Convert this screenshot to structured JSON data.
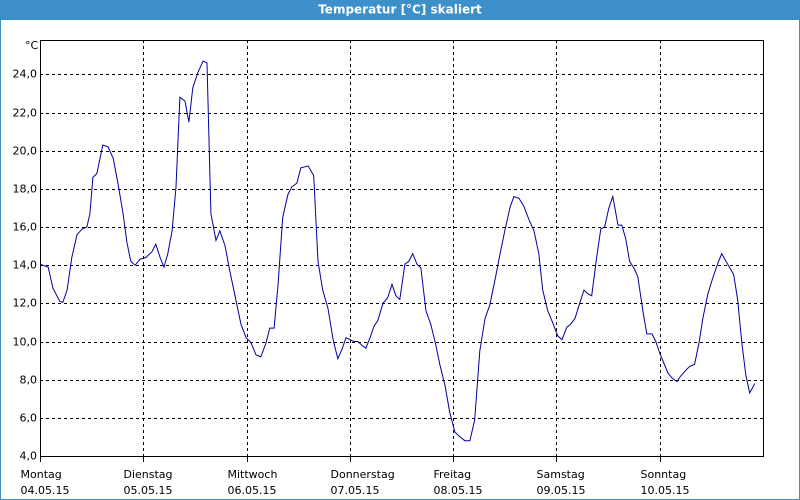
{
  "chart_data": {
    "type": "line",
    "title": "Temperatur [°C] skaliert",
    "y_unit": "°C",
    "x": [
      0,
      1.9,
      3.0,
      4.6,
      5.3,
      6.3,
      7.4,
      8.6,
      9.8,
      10.9,
      11.6,
      12.3,
      13.2,
      14.6,
      15.8,
      17.0,
      18.1,
      19.3,
      20.2,
      21.1,
      22.1,
      23.2,
      24.6,
      26.0,
      26.9,
      27.9,
      28.8,
      29.7,
      30.7,
      31.6,
      32.5,
      33.7,
      34.6,
      35.5,
      36.7,
      37.9,
      38.8,
      39.7,
      40.9,
      41.8,
      43.0,
      44.1,
      45.5,
      46.7,
      47.9,
      49.0,
      50.2,
      51.3,
      52.5,
      53.4,
      54.4,
      55.3,
      56.4,
      57.6,
      58.5,
      59.7,
      60.6,
      62.3,
      63.6,
      64.6,
      65.7,
      66.9,
      68.1,
      69.2,
      70.2,
      71.1,
      72.0,
      72.9,
      73.9,
      74.8,
      75.7,
      76.7,
      77.6,
      78.5,
      79.7,
      80.8,
      81.8,
      82.7,
      83.6,
      84.8,
      85.7,
      86.6,
      87.6,
      88.5,
      89.7,
      90.8,
      92.0,
      92.9,
      94.1,
      95.2,
      96.4,
      97.6,
      98.7,
      99.9,
      101.0,
      102.2,
      103.4,
      104.5,
      105.7,
      106.9,
      108.0,
      109.2,
      110.1,
      111.3,
      112.4,
      113.6,
      114.8,
      115.9,
      116.8,
      118.0,
      119.2,
      120.3,
      121.3,
      122.4,
      123.3,
      124.3,
      125.4,
      126.4,
      127.3,
      128.2,
      129.4,
      130.3,
      131.2,
      132.2,
      133.1,
      134.3,
      135.2,
      136.1,
      137.0,
      138.0,
      138.9,
      140.1,
      141.0,
      142.2,
      143.1,
      144.0,
      144.9,
      145.9,
      146.8,
      148.0,
      148.9,
      150.1,
      151.0,
      152.1,
      153.1,
      154.0,
      155.2,
      156.3,
      157.5,
      158.4,
      159.4,
      160.3,
      161.2,
      162.1,
      163.1,
      164.0,
      164.9,
      166.1
    ],
    "series": [
      {
        "name": "Temperatur",
        "color": "#0000a0",
        "values": [
          14.05,
          13.9,
          12.8,
          12.1,
          12.05,
          12.7,
          14.4,
          15.6,
          15.9,
          16.0,
          16.7,
          18.6,
          18.8,
          20.3,
          20.2,
          19.6,
          18.3,
          16.7,
          15.2,
          14.2,
          14.0,
          14.3,
          14.4,
          14.7,
          15.1,
          14.4,
          13.9,
          14.6,
          15.8,
          18.1,
          22.8,
          22.6,
          21.5,
          23.3,
          24.1,
          24.7,
          24.6,
          16.7,
          15.3,
          15.8,
          15.0,
          13.7,
          12.2,
          10.9,
          10.2,
          9.95,
          9.3,
          9.2,
          9.9,
          10.7,
          10.7,
          12.95,
          16.5,
          17.7,
          18.1,
          18.3,
          19.1,
          19.2,
          18.7,
          14.2,
          12.7,
          11.75,
          10.1,
          9.1,
          9.6,
          10.2,
          10.1,
          10.0,
          10.0,
          9.8,
          9.65,
          10.2,
          10.8,
          11.1,
          12.0,
          12.3,
          13.0,
          12.4,
          12.2,
          14.05,
          14.2,
          14.6,
          14.05,
          13.85,
          11.6,
          10.9,
          9.8,
          8.8,
          7.7,
          6.3,
          5.25,
          5.0,
          4.8,
          4.8,
          5.9,
          9.5,
          11.2,
          11.9,
          13.2,
          14.6,
          15.8,
          17.0,
          17.6,
          17.5,
          17.1,
          16.4,
          15.8,
          14.6,
          12.7,
          11.6,
          10.95,
          10.3,
          10.1,
          10.75,
          10.9,
          11.2,
          12.0,
          12.7,
          12.5,
          12.4,
          14.5,
          15.9,
          16.0,
          17.0,
          17.6,
          16.1,
          16.1,
          15.4,
          14.2,
          13.85,
          13.4,
          11.6,
          10.4,
          10.4,
          10.0,
          9.4,
          8.9,
          8.35,
          8.1,
          7.9,
          8.2,
          8.5,
          8.7,
          8.8,
          9.9,
          11.2,
          12.5,
          13.3,
          14.1,
          14.6,
          14.2,
          13.85,
          13.5,
          12.2,
          9.9,
          8.25,
          7.3,
          7.8
        ]
      }
    ],
    "xlim": [
      0,
      168
    ],
    "xticks": [
      {
        "value": 0,
        "label": "Montag"
      },
      {
        "value": 24,
        "label": "Dienstag"
      },
      {
        "value": 48,
        "label": "Mittwoch"
      },
      {
        "value": 72,
        "label": "Donnerstag"
      },
      {
        "value": 96,
        "label": "Freitag"
      },
      {
        "value": 120,
        "label": "Samstag"
      },
      {
        "value": 144,
        "label": "Sonntag"
      }
    ],
    "xtick_dates": [
      "04.05.15",
      "05.05.15",
      "06.05.15",
      "07.05.15",
      "08.05.15",
      "09.05.15",
      "10.05.15"
    ],
    "ylim": [
      4,
      25.8
    ],
    "yticks": [
      {
        "value": 4,
        "label": "4,0"
      },
      {
        "value": 6,
        "label": "6,0"
      },
      {
        "value": 8,
        "label": "8,0"
      },
      {
        "value": 10,
        "label": "10,0"
      },
      {
        "value": 12,
        "label": "12,0"
      },
      {
        "value": 14,
        "label": "14,0"
      },
      {
        "value": 16,
        "label": "16,0"
      },
      {
        "value": 18,
        "label": "18,0"
      },
      {
        "value": 20,
        "label": "20,0"
      },
      {
        "value": 22,
        "label": "22,0"
      },
      {
        "value": 24,
        "label": "24,0"
      }
    ],
    "grid": true
  }
}
